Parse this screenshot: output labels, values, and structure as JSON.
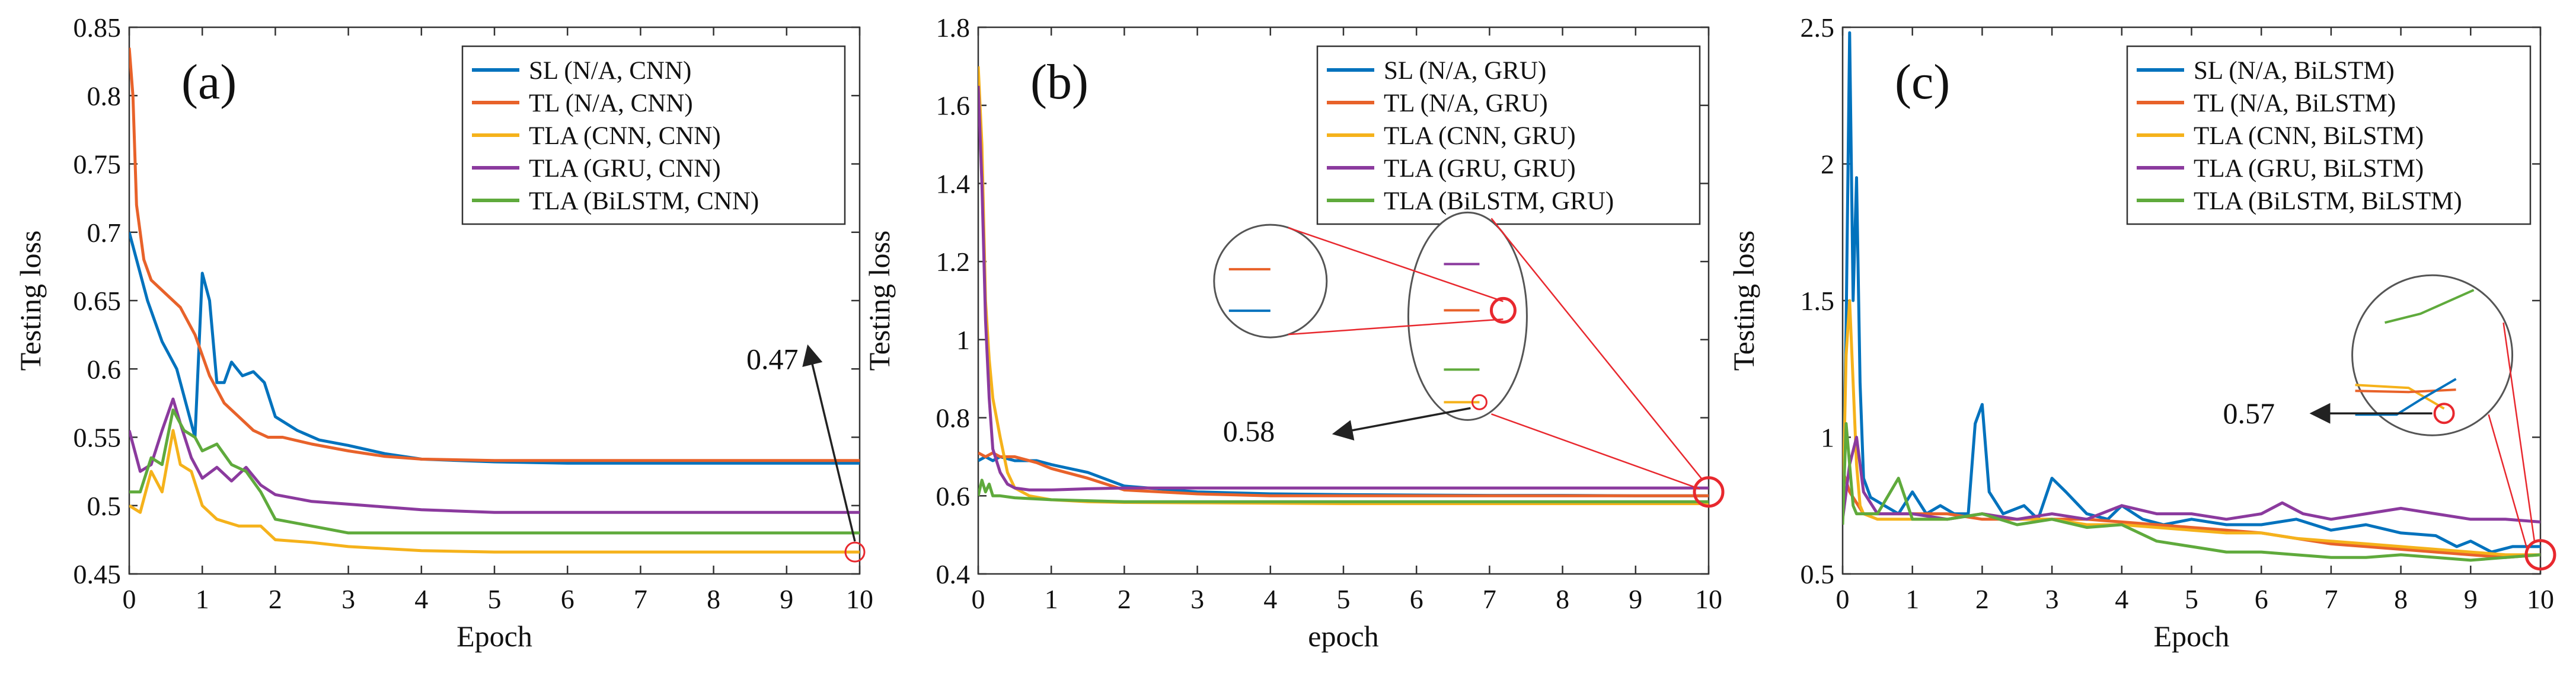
{
  "figure": {
    "type": "multi-panel line chart",
    "panel_count": 3
  },
  "colors": {
    "sl": "#0072BD",
    "tl": "#E8622A",
    "tla_cnn": "#F5B21B",
    "tla_gru": "#8B3A9E",
    "tla_bilstm": "#5FAA3C",
    "zoom_red": "#E8282E",
    "zoom_gray": "#555555"
  },
  "chart_data": [
    {
      "type": "line",
      "panel_label": "(a)",
      "title": "",
      "xlabel": "Epoch",
      "ylabel": "Testing loss",
      "xlim": [
        0,
        10
      ],
      "ylim": [
        0.45,
        0.85
      ],
      "xticks": [
        0,
        1,
        2,
        3,
        4,
        5,
        6,
        7,
        8,
        9,
        10
      ],
      "yticks": [
        0.45,
        0.5,
        0.55,
        0.6,
        0.65,
        0.7,
        0.75,
        0.8,
        0.85
      ],
      "legend_position": "top-right",
      "annotation": {
        "text": "0.47",
        "point": [
          10,
          0.466
        ]
      },
      "series": [
        {
          "name": "SL (N/A, CNN)",
          "color_key": "sl",
          "x": [
            0,
            0.1,
            0.25,
            0.45,
            0.65,
            0.8,
            0.9,
            1.0,
            1.1,
            1.2,
            1.3,
            1.4,
            1.55,
            1.7,
            1.85,
            2.0,
            2.3,
            2.6,
            3.0,
            3.5,
            4.0,
            5.0,
            6.0,
            7.0,
            8.0,
            9.0,
            10.0
          ],
          "values": [
            0.7,
            0.68,
            0.65,
            0.62,
            0.6,
            0.57,
            0.55,
            0.67,
            0.65,
            0.59,
            0.59,
            0.605,
            0.595,
            0.598,
            0.59,
            0.565,
            0.555,
            0.548,
            0.544,
            0.538,
            0.534,
            0.532,
            0.531,
            0.531,
            0.531,
            0.531,
            0.531
          ]
        },
        {
          "name": "TL (N/A, CNN)",
          "color_key": "tl",
          "x": [
            0,
            0.05,
            0.1,
            0.2,
            0.3,
            0.5,
            0.7,
            0.9,
            1.1,
            1.3,
            1.5,
            1.7,
            1.9,
            2.1,
            2.5,
            3.0,
            3.5,
            4.0,
            5.0,
            6.0,
            7.0,
            8.0,
            9.0,
            10.0
          ],
          "values": [
            0.835,
            0.8,
            0.72,
            0.68,
            0.665,
            0.655,
            0.645,
            0.625,
            0.595,
            0.575,
            0.565,
            0.555,
            0.55,
            0.55,
            0.545,
            0.54,
            0.536,
            0.534,
            0.533,
            0.533,
            0.533,
            0.533,
            0.533,
            0.533
          ]
        },
        {
          "name": "TLA (CNN, CNN)",
          "color_key": "tla_cnn",
          "x": [
            0,
            0.15,
            0.3,
            0.45,
            0.6,
            0.7,
            0.85,
            1.0,
            1.2,
            1.5,
            1.8,
            2.0,
            2.5,
            3.0,
            4.0,
            5.0,
            6.0,
            7.0,
            8.0,
            9.0,
            10.0
          ],
          "values": [
            0.5,
            0.495,
            0.525,
            0.51,
            0.555,
            0.53,
            0.525,
            0.5,
            0.49,
            0.485,
            0.485,
            0.475,
            0.473,
            0.47,
            0.467,
            0.466,
            0.466,
            0.466,
            0.466,
            0.466,
            0.466
          ]
        },
        {
          "name": "TLA (GRU, CNN)",
          "color_key": "tla_gru",
          "x": [
            0,
            0.15,
            0.3,
            0.45,
            0.6,
            0.7,
            0.85,
            1.0,
            1.2,
            1.4,
            1.6,
            1.8,
            2.0,
            2.5,
            3.0,
            3.5,
            4.0,
            5.0,
            6.0,
            7.0,
            8.0,
            9.0,
            10.0
          ],
          "values": [
            0.555,
            0.525,
            0.53,
            0.555,
            0.578,
            0.56,
            0.535,
            0.52,
            0.528,
            0.518,
            0.528,
            0.515,
            0.508,
            0.503,
            0.501,
            0.499,
            0.497,
            0.495,
            0.495,
            0.495,
            0.495,
            0.495,
            0.495
          ]
        },
        {
          "name": "TLA (BiLSTM, CNN)",
          "color_key": "tla_bilstm",
          "x": [
            0,
            0.15,
            0.3,
            0.45,
            0.6,
            0.75,
            0.9,
            1.0,
            1.2,
            1.4,
            1.6,
            1.8,
            2.0,
            2.5,
            3.0,
            4.0,
            5.0,
            6.0,
            7.0,
            8.0,
            9.0,
            10.0
          ],
          "values": [
            0.51,
            0.51,
            0.535,
            0.53,
            0.57,
            0.555,
            0.55,
            0.54,
            0.545,
            0.53,
            0.525,
            0.51,
            0.49,
            0.485,
            0.48,
            0.48,
            0.48,
            0.48,
            0.48,
            0.48,
            0.48,
            0.48
          ]
        }
      ]
    },
    {
      "type": "line",
      "panel_label": "(b)",
      "title": "",
      "xlabel": "epoch",
      "ylabel": "Testing loss",
      "xlim": [
        0,
        10
      ],
      "ylim": [
        0.4,
        1.8
      ],
      "xticks": [
        0,
        1,
        2,
        3,
        4,
        5,
        6,
        7,
        8,
        9,
        10
      ],
      "yticks": [
        0.4,
        0.6,
        0.8,
        1,
        1.2,
        1.4,
        1.6,
        1.8
      ],
      "legend_position": "top-right",
      "annotation": {
        "text": "0.58",
        "point": [
          6.7,
          0.8
        ]
      },
      "series": [
        {
          "name": "SL (N/A, GRU)",
          "color_key": "sl",
          "x": [
            0,
            0.1,
            0.2,
            0.3,
            0.5,
            0.8,
            1.0,
            1.5,
            2.0,
            3.0,
            4.0,
            5.0,
            6.0,
            7.0,
            8.0,
            9.0,
            10.0
          ],
          "values": [
            0.69,
            0.7,
            0.69,
            0.7,
            0.69,
            0.69,
            0.68,
            0.66,
            0.625,
            0.61,
            0.605,
            0.603,
            0.602,
            0.601,
            0.601,
            0.6,
            0.6
          ]
        },
        {
          "name": "TL (N/A, GRU)",
          "color_key": "tl",
          "x": [
            0,
            0.1,
            0.2,
            0.3,
            0.5,
            0.8,
            1.0,
            1.5,
            2.0,
            3.0,
            4.0,
            5.0,
            6.0,
            7.0,
            8.0,
            9.0,
            10.0
          ],
          "values": [
            0.71,
            0.7,
            0.71,
            0.7,
            0.7,
            0.685,
            0.67,
            0.645,
            0.615,
            0.605,
            0.6,
            0.6,
            0.6,
            0.6,
            0.6,
            0.6,
            0.6
          ]
        },
        {
          "name": "TLA (CNN, GRU)",
          "color_key": "tla_cnn",
          "x": [
            0,
            0.05,
            0.1,
            0.15,
            0.2,
            0.3,
            0.4,
            0.5,
            0.7,
            1.0,
            1.5,
            2.0,
            3.0,
            4.0,
            5.0,
            6.0,
            7.0,
            8.0,
            9.0,
            10.0
          ],
          "values": [
            1.7,
            1.5,
            1.1,
            0.95,
            0.85,
            0.75,
            0.66,
            0.62,
            0.6,
            0.59,
            0.585,
            0.583,
            0.582,
            0.581,
            0.58,
            0.58,
            0.58,
            0.58,
            0.58,
            0.58
          ]
        },
        {
          "name": "TLA (GRU, GRU)",
          "color_key": "tla_gru",
          "x": [
            0,
            0.05,
            0.1,
            0.15,
            0.2,
            0.3,
            0.4,
            0.5,
            0.7,
            1.0,
            1.5,
            2.0,
            3.0,
            4.0,
            5.0,
            6.0,
            7.0,
            8.0,
            9.0,
            10.0
          ],
          "values": [
            1.65,
            1.4,
            1.05,
            0.85,
            0.72,
            0.66,
            0.63,
            0.62,
            0.615,
            0.615,
            0.618,
            0.62,
            0.62,
            0.62,
            0.62,
            0.62,
            0.62,
            0.62,
            0.62,
            0.62
          ]
        },
        {
          "name": "TLA (BiLSTM, GRU)",
          "color_key": "tla_bilstm",
          "x": [
            0,
            0.05,
            0.1,
            0.15,
            0.2,
            0.3,
            0.5,
            1.0,
            2.0,
            3.0,
            4.0,
            5.0,
            6.0,
            7.0,
            8.0,
            9.0,
            10.0
          ],
          "values": [
            0.6,
            0.64,
            0.61,
            0.63,
            0.6,
            0.6,
            0.595,
            0.59,
            0.585,
            0.585,
            0.585,
            0.585,
            0.585,
            0.585,
            0.585,
            0.585,
            0.585
          ]
        }
      ]
    },
    {
      "type": "line",
      "panel_label": "(c)",
      "title": "",
      "xlabel": "Epoch",
      "ylabel": "Testing loss",
      "xlim": [
        0,
        10
      ],
      "ylim": [
        0.5,
        2.5
      ],
      "xticks": [
        0,
        1,
        2,
        3,
        4,
        5,
        6,
        7,
        8,
        9,
        10
      ],
      "yticks": [
        0.5,
        1,
        1.5,
        2,
        2.5
      ],
      "legend_position": "top-right",
      "annotation": {
        "text": "0.57",
        "point": [
          8.5,
          0.98
        ]
      },
      "series": [
        {
          "name": "SL (N/A, BiLSTM)",
          "color_key": "sl",
          "x": [
            0,
            0.05,
            0.1,
            0.15,
            0.2,
            0.25,
            0.3,
            0.4,
            0.6,
            0.8,
            1.0,
            1.2,
            1.4,
            1.6,
            1.8,
            1.9,
            2.0,
            2.1,
            2.3,
            2.6,
            2.8,
            3.0,
            3.2,
            3.5,
            3.8,
            4.0,
            4.3,
            4.6,
            5.0,
            5.5,
            6.0,
            6.5,
            7.0,
            7.5,
            8.0,
            8.5,
            8.8,
            9.0,
            9.3,
            9.6,
            10.0
          ],
          "values": [
            0.7,
            1.4,
            2.48,
            1.5,
            1.95,
            1.2,
            0.85,
            0.78,
            0.75,
            0.72,
            0.8,
            0.72,
            0.75,
            0.72,
            0.72,
            1.05,
            1.12,
            0.8,
            0.72,
            0.75,
            0.7,
            0.85,
            0.8,
            0.72,
            0.7,
            0.75,
            0.7,
            0.68,
            0.7,
            0.68,
            0.68,
            0.7,
            0.66,
            0.68,
            0.65,
            0.64,
            0.6,
            0.62,
            0.58,
            0.6,
            0.6
          ]
        },
        {
          "name": "TL (N/A, BiLSTM)",
          "color_key": "tl",
          "x": [
            0,
            0.1,
            0.2,
            0.3,
            0.5,
            1.0,
            1.5,
            2.0,
            2.5,
            3.0,
            3.5,
            4.0,
            4.5,
            5.0,
            5.5,
            6.0,
            6.5,
            7.0,
            7.5,
            8.0,
            8.5,
            9.0,
            9.5,
            10.0
          ],
          "values": [
            0.88,
            0.8,
            0.76,
            0.72,
            0.72,
            0.72,
            0.72,
            0.7,
            0.7,
            0.7,
            0.7,
            0.69,
            0.68,
            0.67,
            0.66,
            0.65,
            0.63,
            0.61,
            0.6,
            0.59,
            0.58,
            0.57,
            0.56,
            0.57
          ]
        },
        {
          "name": "TLA (CNN, BiLSTM)",
          "color_key": "tla_cnn",
          "x": [
            0,
            0.05,
            0.1,
            0.15,
            0.2,
            0.25,
            0.3,
            0.5,
            1.0,
            1.5,
            2.0,
            2.5,
            3.0,
            3.5,
            4.0,
            4.5,
            5.0,
            5.5,
            6.0,
            6.5,
            7.0,
            7.5,
            8.0,
            8.5,
            9.0,
            9.5,
            10.0
          ],
          "values": [
            0.7,
            1.3,
            1.5,
            1.2,
            0.9,
            0.75,
            0.72,
            0.7,
            0.7,
            0.7,
            0.72,
            0.7,
            0.7,
            0.68,
            0.68,
            0.67,
            0.66,
            0.65,
            0.65,
            0.63,
            0.62,
            0.61,
            0.6,
            0.59,
            0.58,
            0.57,
            0.57
          ]
        },
        {
          "name": "TLA (GRU, BiLSTM)",
          "color_key": "tla_gru",
          "x": [
            0,
            0.1,
            0.2,
            0.3,
            0.5,
            1.0,
            1.5,
            2.0,
            2.5,
            3.0,
            3.5,
            4.0,
            4.5,
            5.0,
            5.5,
            6.0,
            6.3,
            6.6,
            7.0,
            7.5,
            8.0,
            8.5,
            9.0,
            9.5,
            10.0
          ],
          "values": [
            0.7,
            0.9,
            1.0,
            0.8,
            0.72,
            0.72,
            0.7,
            0.72,
            0.7,
            0.72,
            0.7,
            0.75,
            0.72,
            0.72,
            0.7,
            0.72,
            0.76,
            0.72,
            0.7,
            0.72,
            0.74,
            0.72,
            0.7,
            0.7,
            0.69
          ]
        },
        {
          "name": "TLA (BiLSTM, BiLSTM)",
          "color_key": "tla_bilstm",
          "x": [
            0,
            0.05,
            0.1,
            0.15,
            0.2,
            0.3,
            0.5,
            0.8,
            1.0,
            1.5,
            2.0,
            2.5,
            3.0,
            3.5,
            4.0,
            4.5,
            5.0,
            5.5,
            6.0,
            6.5,
            7.0,
            7.5,
            8.0,
            8.5,
            9.0,
            9.5,
            10.0
          ],
          "values": [
            0.68,
            1.05,
            0.9,
            0.75,
            0.72,
            0.72,
            0.72,
            0.85,
            0.7,
            0.7,
            0.72,
            0.68,
            0.7,
            0.67,
            0.68,
            0.62,
            0.6,
            0.58,
            0.58,
            0.57,
            0.56,
            0.56,
            0.57,
            0.56,
            0.55,
            0.56,
            0.57
          ]
        }
      ]
    }
  ]
}
